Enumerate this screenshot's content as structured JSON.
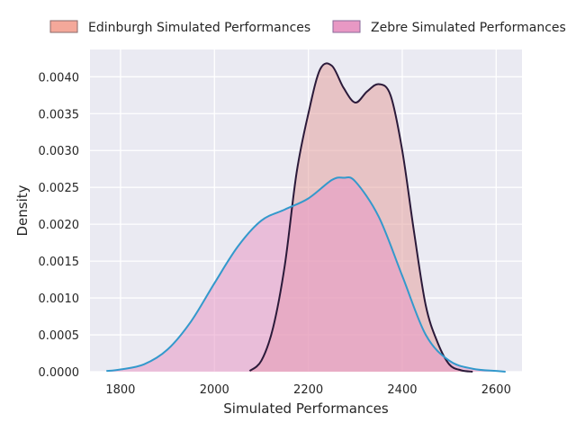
{
  "chart_data": {
    "type": "area",
    "xlabel": "Simulated Performances",
    "ylabel": "Density",
    "xlim": [
      1735,
      2655
    ],
    "ylim": [
      0,
      0.00437
    ],
    "x_ticks": [
      "1800",
      "2000",
      "2200",
      "2400",
      "2600"
    ],
    "y_ticks": [
      "0.0000",
      "0.0005",
      "0.0010",
      "0.0015",
      "0.0020",
      "0.0025",
      "0.0030",
      "0.0035",
      "0.0040"
    ],
    "grid": true,
    "legend_position": "top",
    "series": [
      {
        "name": "Edinburgh Simulated Performances",
        "fill": "#e3a2a0",
        "fill_opacity": 0.55,
        "line": "#2b1a3a",
        "legend_fill": "#f4a89a",
        "x": [
          2075,
          2100,
          2125,
          2150,
          2175,
          2200,
          2225,
          2250,
          2275,
          2300,
          2325,
          2350,
          2375,
          2400,
          2425,
          2450,
          2475,
          2500,
          2525,
          2550
        ],
        "y": [
          1e-05,
          0.00015,
          0.0006,
          0.00145,
          0.0027,
          0.0035,
          0.0041,
          0.00415,
          0.00385,
          0.00365,
          0.0038,
          0.0039,
          0.00375,
          0.003,
          0.0019,
          0.0009,
          0.0004,
          0.0001,
          2e-05,
          0.0
        ]
      },
      {
        "name": "Zebre Simulated Performances",
        "fill": "#e898c4",
        "fill_opacity": 0.55,
        "line": "#3399cc",
        "legend_fill": "#e898c4",
        "x": [
          1770,
          1800,
          1850,
          1900,
          1950,
          2000,
          2050,
          2100,
          2150,
          2200,
          2250,
          2275,
          2300,
          2350,
          2400,
          2450,
          2500,
          2550,
          2600,
          2620
        ],
        "y": [
          1e-05,
          3e-05,
          0.0001,
          0.0003,
          0.00068,
          0.0012,
          0.0017,
          0.00205,
          0.0022,
          0.00235,
          0.0026,
          0.00263,
          0.00258,
          0.0021,
          0.0013,
          0.0005,
          0.00015,
          4e-05,
          1e-05,
          0.0
        ]
      }
    ]
  }
}
